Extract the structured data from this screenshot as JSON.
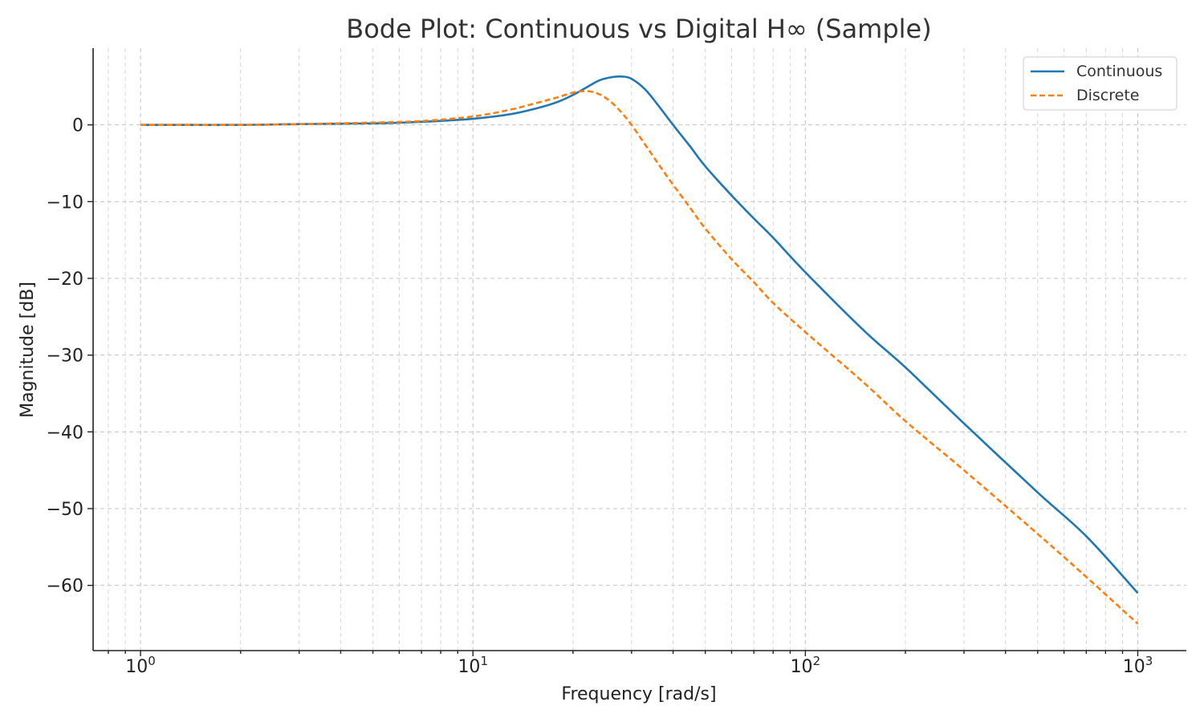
{
  "chart_data": {
    "type": "line",
    "title": "Bode Plot: Continuous vs Digital H∞ (Sample)",
    "xlabel": "Frequency [rad/s]",
    "ylabel": "Magnitude [dB]",
    "xscale": "log",
    "xlim": [
      0.72,
      1400
    ],
    "ylim": [
      -68.5,
      10
    ],
    "x_ticks": [
      1,
      10,
      100,
      1000
    ],
    "x_tick_labels": [
      {
        "base": "10",
        "exp": "0"
      },
      {
        "base": "10",
        "exp": "1"
      },
      {
        "base": "10",
        "exp": "2"
      },
      {
        "base": "10",
        "exp": "3"
      }
    ],
    "y_ticks": [
      0,
      -10,
      -20,
      -30,
      -40,
      -50,
      -60
    ],
    "y_tick_labels": [
      "0",
      "−10",
      "−20",
      "−30",
      "−40",
      "−50",
      "−60"
    ],
    "grid": true,
    "legend_position": "top-right",
    "x": [
      1,
      2,
      3,
      5,
      7,
      10,
      13,
      16,
      18,
      20,
      22,
      24,
      26,
      28,
      30,
      33,
      36,
      40,
      45,
      50,
      60,
      70,
      80,
      100,
      150,
      200,
      300,
      500,
      700,
      1000
    ],
    "series": [
      {
        "name": "Continuous",
        "color": "#1f77b4",
        "style": "solid",
        "values": [
          0,
          0,
          0.1,
          0.2,
          0.4,
          0.8,
          1.4,
          2.3,
          3.0,
          3.9,
          4.9,
          5.8,
          6.2,
          6.3,
          6.0,
          4.6,
          2.6,
          0,
          -2.8,
          -5.4,
          -9.2,
          -12.2,
          -14.7,
          -19.2,
          -26.8,
          -31.6,
          -38.9,
          -47.9,
          -53.6,
          -61
        ]
      },
      {
        "name": "Discrete",
        "color": "#ff7f0e",
        "style": "dashed",
        "values": [
          0,
          0,
          0.1,
          0.3,
          0.5,
          1.1,
          2.0,
          3.0,
          3.6,
          4.2,
          4.4,
          4.0,
          3.0,
          1.6,
          0,
          -2.6,
          -5.0,
          -7.8,
          -10.8,
          -13.5,
          -17.5,
          -20.5,
          -23.2,
          -27.0,
          -33.6,
          -38.6,
          -45.0,
          -53.3,
          -58.9,
          -65
        ]
      }
    ]
  }
}
